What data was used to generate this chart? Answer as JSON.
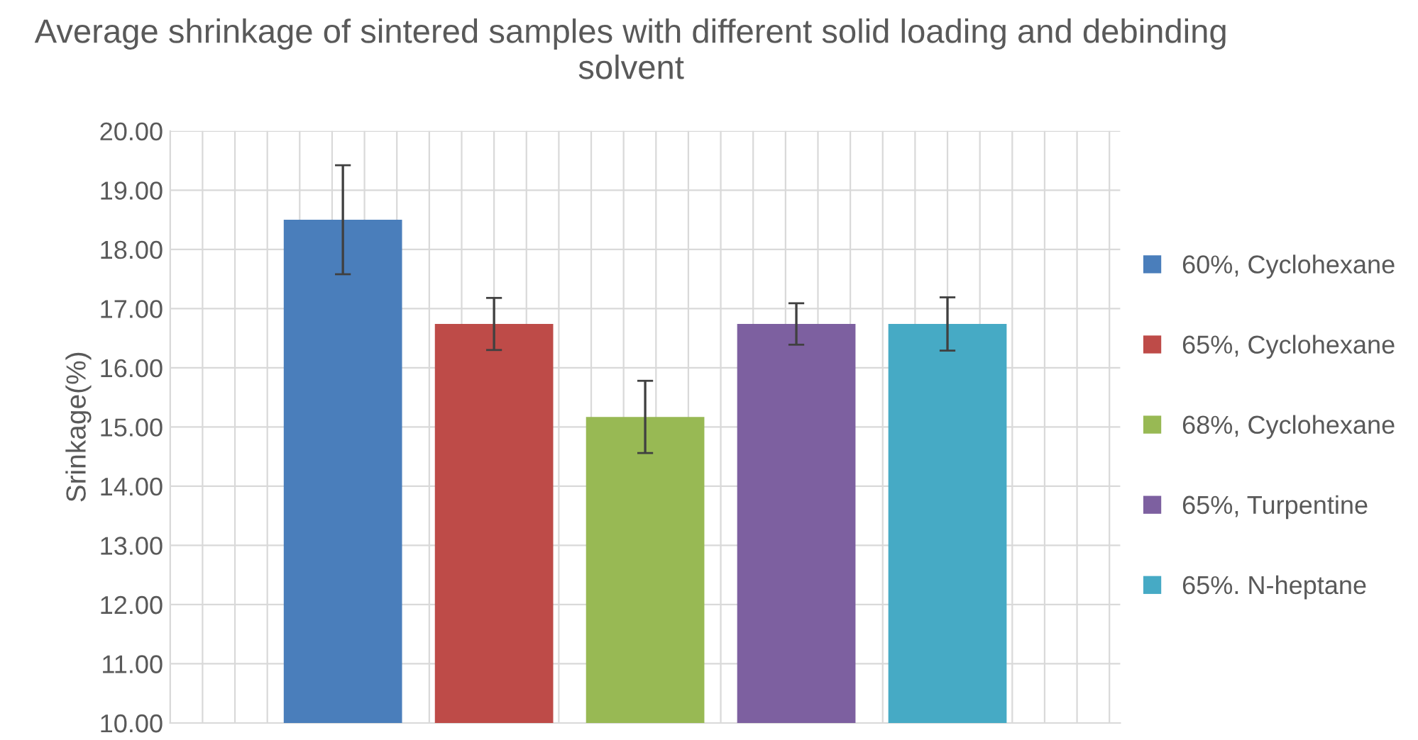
{
  "chart_data": {
    "type": "bar",
    "title": "Average shrinkage of sintered samples with different solid loading and debinding solvent",
    "ylabel": "Srinkage(%)",
    "categories": [
      null
    ],
    "series": [
      {
        "name": "60%, Cyclohexane",
        "color": "#4a7ebb",
        "values": [
          18.5
        ],
        "errors": [
          0.92
        ]
      },
      {
        "name": "65%, Cyclohexane",
        "color": "#be4b48",
        "values": [
          16.74
        ],
        "errors": [
          0.44
        ]
      },
      {
        "name": "68%, Cyclohexane",
        "color": "#98b954",
        "values": [
          15.17
        ],
        "errors": [
          0.61
        ]
      },
      {
        "name": "65%, Turpentine",
        "color": "#7d60a0",
        "values": [
          16.74
        ],
        "errors": [
          0.35
        ]
      },
      {
        "name": "65%. N-heptane",
        "color": "#46aac5",
        "values": [
          16.74
        ],
        "errors": [
          0.45
        ]
      }
    ],
    "ylim": [
      10,
      20
    ],
    "yticks": [
      {
        "value": 10,
        "label": "10.00"
      },
      {
        "value": 11,
        "label": "11.00"
      },
      {
        "value": 12,
        "label": "12.00"
      },
      {
        "value": 13,
        "label": "13.00"
      },
      {
        "value": 14,
        "label": "14.00"
      },
      {
        "value": 15,
        "label": "15.00"
      },
      {
        "value": 16,
        "label": "16.00"
      },
      {
        "value": 17,
        "label": "17.00"
      },
      {
        "value": 18,
        "label": "18.00"
      },
      {
        "value": 19,
        "label": "19.00"
      },
      {
        "value": 20,
        "label": "20.00"
      }
    ],
    "grid": true,
    "legend": "right"
  }
}
